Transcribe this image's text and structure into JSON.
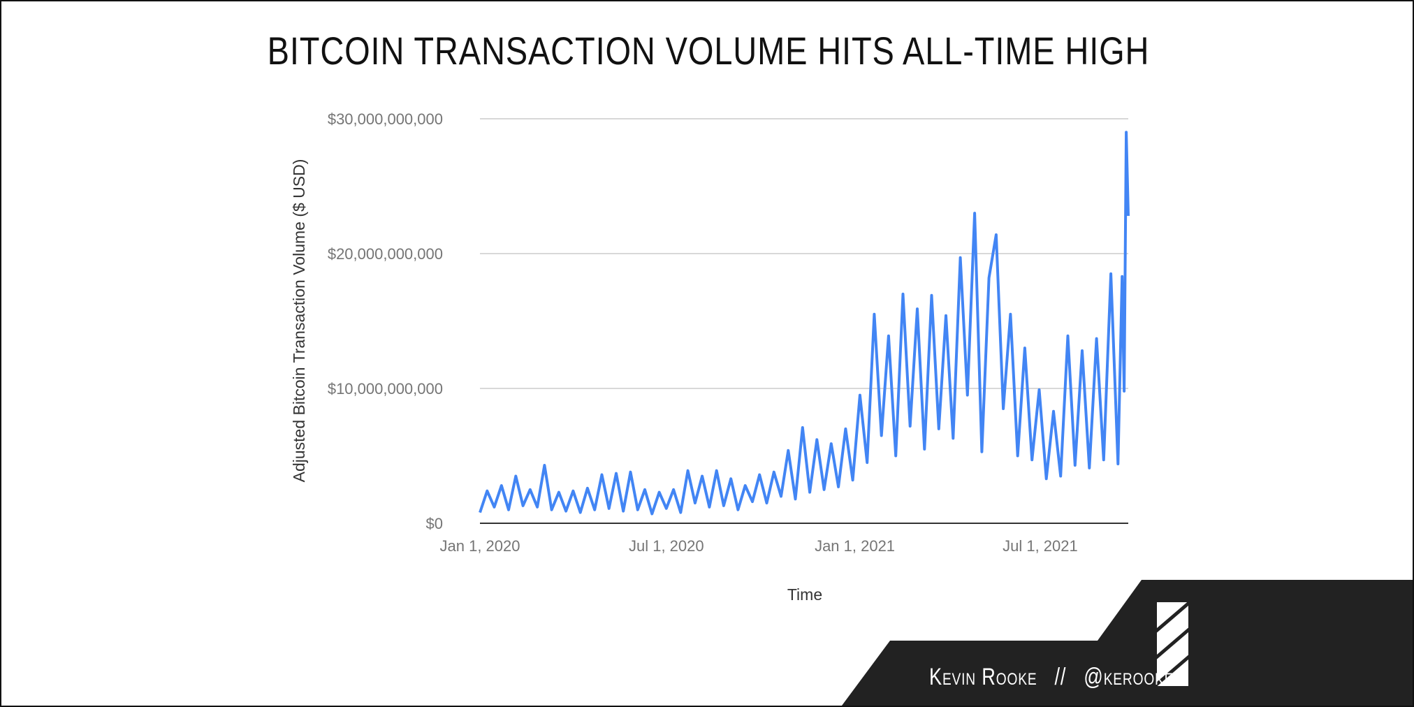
{
  "chart_data": {
    "type": "line",
    "title": "BITCOIN TRANSACTION VOLUME HITS ALL-TIME HIGH",
    "xlabel": "Time",
    "ylabel": "Adjusted Bitcoin Transaction Volume ($ USD)",
    "xlim": [
      "2020-01-01",
      "2021-09-25"
    ],
    "ylim": [
      0,
      30000000000
    ],
    "x_ticks": [
      {
        "date": "2020-01-01",
        "label": "Jan 1, 2020"
      },
      {
        "date": "2020-07-01",
        "label": "Jul 1, 2020"
      },
      {
        "date": "2021-01-01",
        "label": "Jan 1, 2021"
      },
      {
        "date": "2021-07-01",
        "label": "Jul 1, 2021"
      }
    ],
    "y_ticks": [
      {
        "value": 0,
        "label": "$0"
      },
      {
        "value": 10000000000,
        "label": "$10,000,000,000"
      },
      {
        "value": 20000000000,
        "label": "$20,000,000,000"
      },
      {
        "value": 30000000000,
        "label": "$30,000,000,000"
      }
    ],
    "grid": true,
    "series_color": "#4285f4",
    "points": [
      [
        "2020-01-01",
        800000000.0
      ],
      [
        "2020-01-08",
        2400000000.0
      ],
      [
        "2020-01-15",
        1200000000.0
      ],
      [
        "2020-01-22",
        2800000000.0
      ],
      [
        "2020-01-29",
        1000000000.0
      ],
      [
        "2020-02-05",
        3500000000.0
      ],
      [
        "2020-02-12",
        1300000000.0
      ],
      [
        "2020-02-19",
        2500000000.0
      ],
      [
        "2020-02-26",
        1200000000.0
      ],
      [
        "2020-03-04",
        4300000000.0
      ],
      [
        "2020-03-11",
        1000000000.0
      ],
      [
        "2020-03-18",
        2300000000.0
      ],
      [
        "2020-03-25",
        900000000.0
      ],
      [
        "2020-04-01",
        2400000000.0
      ],
      [
        "2020-04-08",
        800000000.0
      ],
      [
        "2020-04-15",
        2600000000.0
      ],
      [
        "2020-04-22",
        1000000000.0
      ],
      [
        "2020-04-29",
        3600000000.0
      ],
      [
        "2020-05-06",
        1100000000.0
      ],
      [
        "2020-05-13",
        3700000000.0
      ],
      [
        "2020-05-20",
        900000000.0
      ],
      [
        "2020-05-27",
        3800000000.0
      ],
      [
        "2020-06-03",
        1000000000.0
      ],
      [
        "2020-06-10",
        2500000000.0
      ],
      [
        "2020-06-17",
        700000000.0
      ],
      [
        "2020-06-24",
        2300000000.0
      ],
      [
        "2020-07-01",
        1100000000.0
      ],
      [
        "2020-07-08",
        2500000000.0
      ],
      [
        "2020-07-15",
        800000000.0
      ],
      [
        "2020-07-22",
        3900000000.0
      ],
      [
        "2020-07-29",
        1500000000.0
      ],
      [
        "2020-08-05",
        3500000000.0
      ],
      [
        "2020-08-12",
        1200000000.0
      ],
      [
        "2020-08-19",
        3900000000.0
      ],
      [
        "2020-08-26",
        1300000000.0
      ],
      [
        "2020-09-02",
        3300000000.0
      ],
      [
        "2020-09-09",
        1000000000.0
      ],
      [
        "2020-09-16",
        2800000000.0
      ],
      [
        "2020-09-23",
        1600000000.0
      ],
      [
        "2020-09-30",
        3600000000.0
      ],
      [
        "2020-10-07",
        1500000000.0
      ],
      [
        "2020-10-14",
        3800000000.0
      ],
      [
        "2020-10-21",
        2000000000.0
      ],
      [
        "2020-10-28",
        5400000000.0
      ],
      [
        "2020-11-04",
        1800000000.0
      ],
      [
        "2020-11-11",
        7100000000.0
      ],
      [
        "2020-11-18",
        2300000000.0
      ],
      [
        "2020-11-25",
        6200000000.0
      ],
      [
        "2020-12-02",
        2500000000.0
      ],
      [
        "2020-12-09",
        5900000000.0
      ],
      [
        "2020-12-16",
        2700000000.0
      ],
      [
        "2020-12-23",
        7000000000.0
      ],
      [
        "2020-12-30",
        3200000000.0
      ],
      [
        "2021-01-06",
        9500000000.0
      ],
      [
        "2021-01-13",
        4500000000.0
      ],
      [
        "2021-01-20",
        15500000000.0
      ],
      [
        "2021-01-27",
        6500000000.0
      ],
      [
        "2021-02-03",
        13900000000.0
      ],
      [
        "2021-02-10",
        5000000000.0
      ],
      [
        "2021-02-17",
        17000000000.0
      ],
      [
        "2021-02-24",
        7200000000.0
      ],
      [
        "2021-03-03",
        15900000000.0
      ],
      [
        "2021-03-10",
        5500000000.0
      ],
      [
        "2021-03-17",
        16900000000.0
      ],
      [
        "2021-03-24",
        7000000000.0
      ],
      [
        "2021-03-31",
        15400000000.0
      ],
      [
        "2021-04-07",
        6300000000.0
      ],
      [
        "2021-04-14",
        19700000000.0
      ],
      [
        "2021-04-21",
        9500000000.0
      ],
      [
        "2021-04-28",
        23000000000.0
      ],
      [
        "2021-05-05",
        5300000000.0
      ],
      [
        "2021-05-12",
        18200000000.0
      ],
      [
        "2021-05-19",
        21400000000.0
      ],
      [
        "2021-05-26",
        8500000000.0
      ],
      [
        "2021-06-02",
        15500000000.0
      ],
      [
        "2021-06-09",
        5000000000.0
      ],
      [
        "2021-06-16",
        13000000000.0
      ],
      [
        "2021-06-23",
        4700000000.0
      ],
      [
        "2021-06-30",
        9900000000.0
      ],
      [
        "2021-07-07",
        3300000000.0
      ],
      [
        "2021-07-14",
        8300000000.0
      ],
      [
        "2021-07-21",
        3500000000.0
      ],
      [
        "2021-07-28",
        13900000000.0
      ],
      [
        "2021-08-04",
        4300000000.0
      ],
      [
        "2021-08-11",
        12800000000.0
      ],
      [
        "2021-08-18",
        4100000000.0
      ],
      [
        "2021-08-25",
        13700000000.0
      ],
      [
        "2021-09-01",
        4700000000.0
      ],
      [
        "2021-09-08",
        18500000000.0
      ],
      [
        "2021-09-15",
        4400000000.0
      ],
      [
        "2021-09-19",
        18300000000.0
      ],
      [
        "2021-09-21",
        9800000000.0
      ],
      [
        "2021-09-23",
        29000000000.0
      ],
      [
        "2021-09-25",
        22800000000.0
      ]
    ]
  },
  "credit": {
    "text": "Kevin Rooke   //   @kerooke",
    "logo": "striped-square-logo"
  }
}
